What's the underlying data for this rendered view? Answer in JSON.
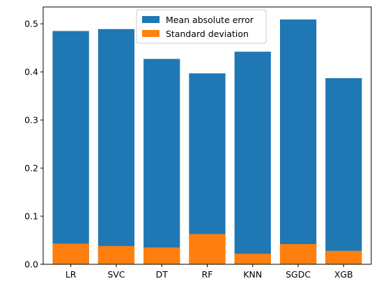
{
  "chart_data": {
    "type": "bar",
    "title": "",
    "xlabel": "",
    "ylabel": "",
    "categories": [
      "LR",
      "SVC",
      "DT",
      "RF",
      "KNN",
      "SGDC",
      "XGB"
    ],
    "series": [
      {
        "name": "Mean absolute error",
        "color": "#1f77b4",
        "values": [
          0.485,
          0.489,
          0.427,
          0.397,
          0.442,
          0.509,
          0.387
        ]
      },
      {
        "name": "Standard deviation",
        "color": "#ff7f0e",
        "values": [
          0.043,
          0.038,
          0.035,
          0.063,
          0.022,
          0.042,
          0.028
        ]
      }
    ],
    "yticks": [
      "0.0",
      "0.1",
      "0.2",
      "0.3",
      "0.4",
      "0.5"
    ],
    "ylim": [
      0,
      0.535
    ],
    "grid": false,
    "legend_position": "top-center"
  }
}
